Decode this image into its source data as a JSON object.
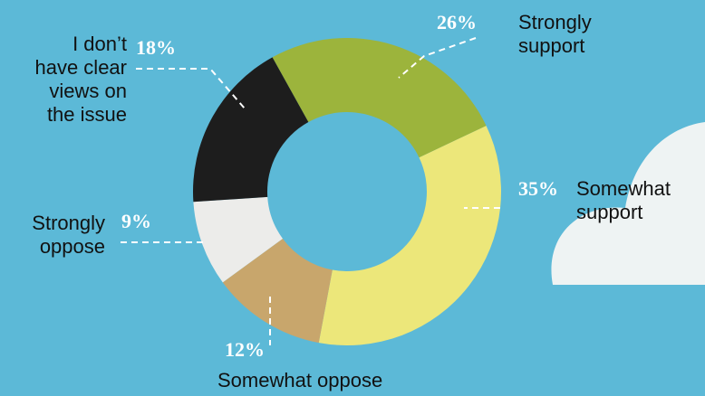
{
  "chart_data": {
    "type": "donut",
    "categories": [
      "Strongly\nsupport",
      "Somewhat\nsupport",
      "Somewhat oppose",
      "Strongly\noppose",
      "I don’t\nhave clear\nviews on\nthe issue"
    ],
    "values": [
      26,
      35,
      12,
      9,
      18
    ],
    "value_labels": [
      "26%",
      "35%",
      "12%",
      "9%",
      "18%"
    ],
    "colors": [
      "#9cb43c",
      "#ece77a",
      "#c8a66c",
      "#ececea",
      "#1d1d1d"
    ]
  }
}
